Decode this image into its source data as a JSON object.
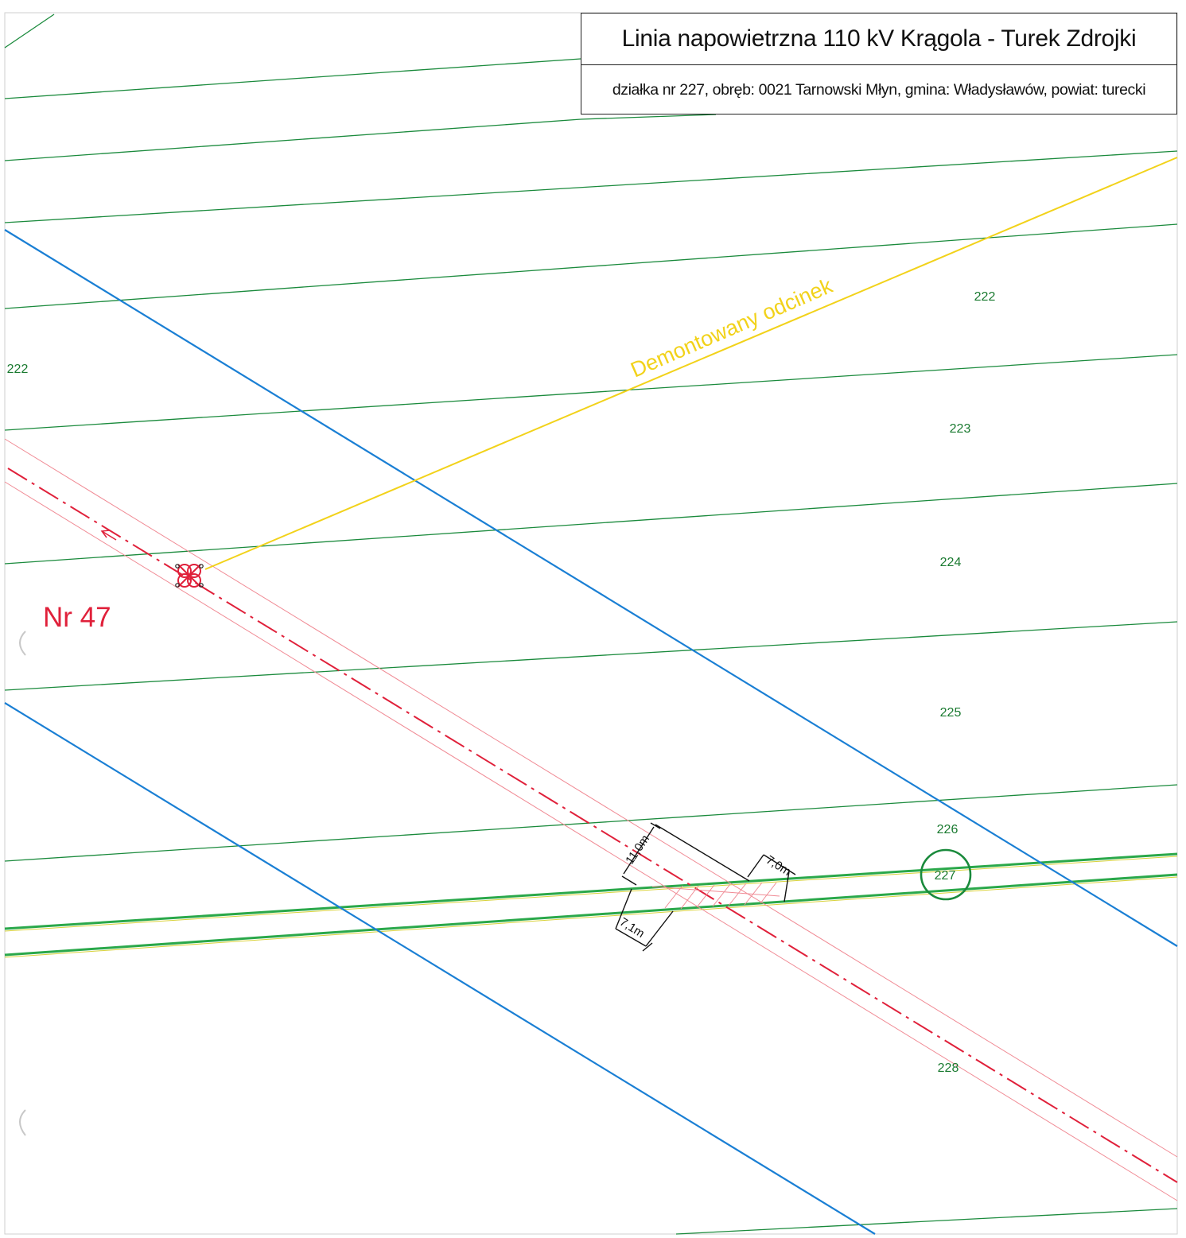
{
  "title_block": {
    "title": "Linia napowietrzna 110 kV Krągola - Turek Zdrojki",
    "subtitle": "działka nr 227, obręb: 0021 Tarnowski Młyn, gmina: Władysławów, powiat: turecki"
  },
  "parcels": {
    "label_222_left": "222",
    "label_222_right": "222",
    "label_223": "223",
    "label_224": "224",
    "label_225": "225",
    "label_226": "226",
    "label_227": "227",
    "label_228": "228"
  },
  "annotations": {
    "dismantled_section": "Demontowany odcinek",
    "tower_number": "Nr 47"
  },
  "dimensions": {
    "d_11m": "11,0m",
    "d_7m": "7,0m",
    "d_71m": "7,1m"
  },
  "colors": {
    "parcel_border": "#1a8a3c",
    "parcel_label": "#1a7a30",
    "road_line": "#1a7fd4",
    "dismantled_line": "#f2d21a",
    "power_line": "#e0203a",
    "power_buffer": "#f08a94",
    "highlight_circle": "#1a8a3c",
    "tower_label": "#e0203a"
  }
}
